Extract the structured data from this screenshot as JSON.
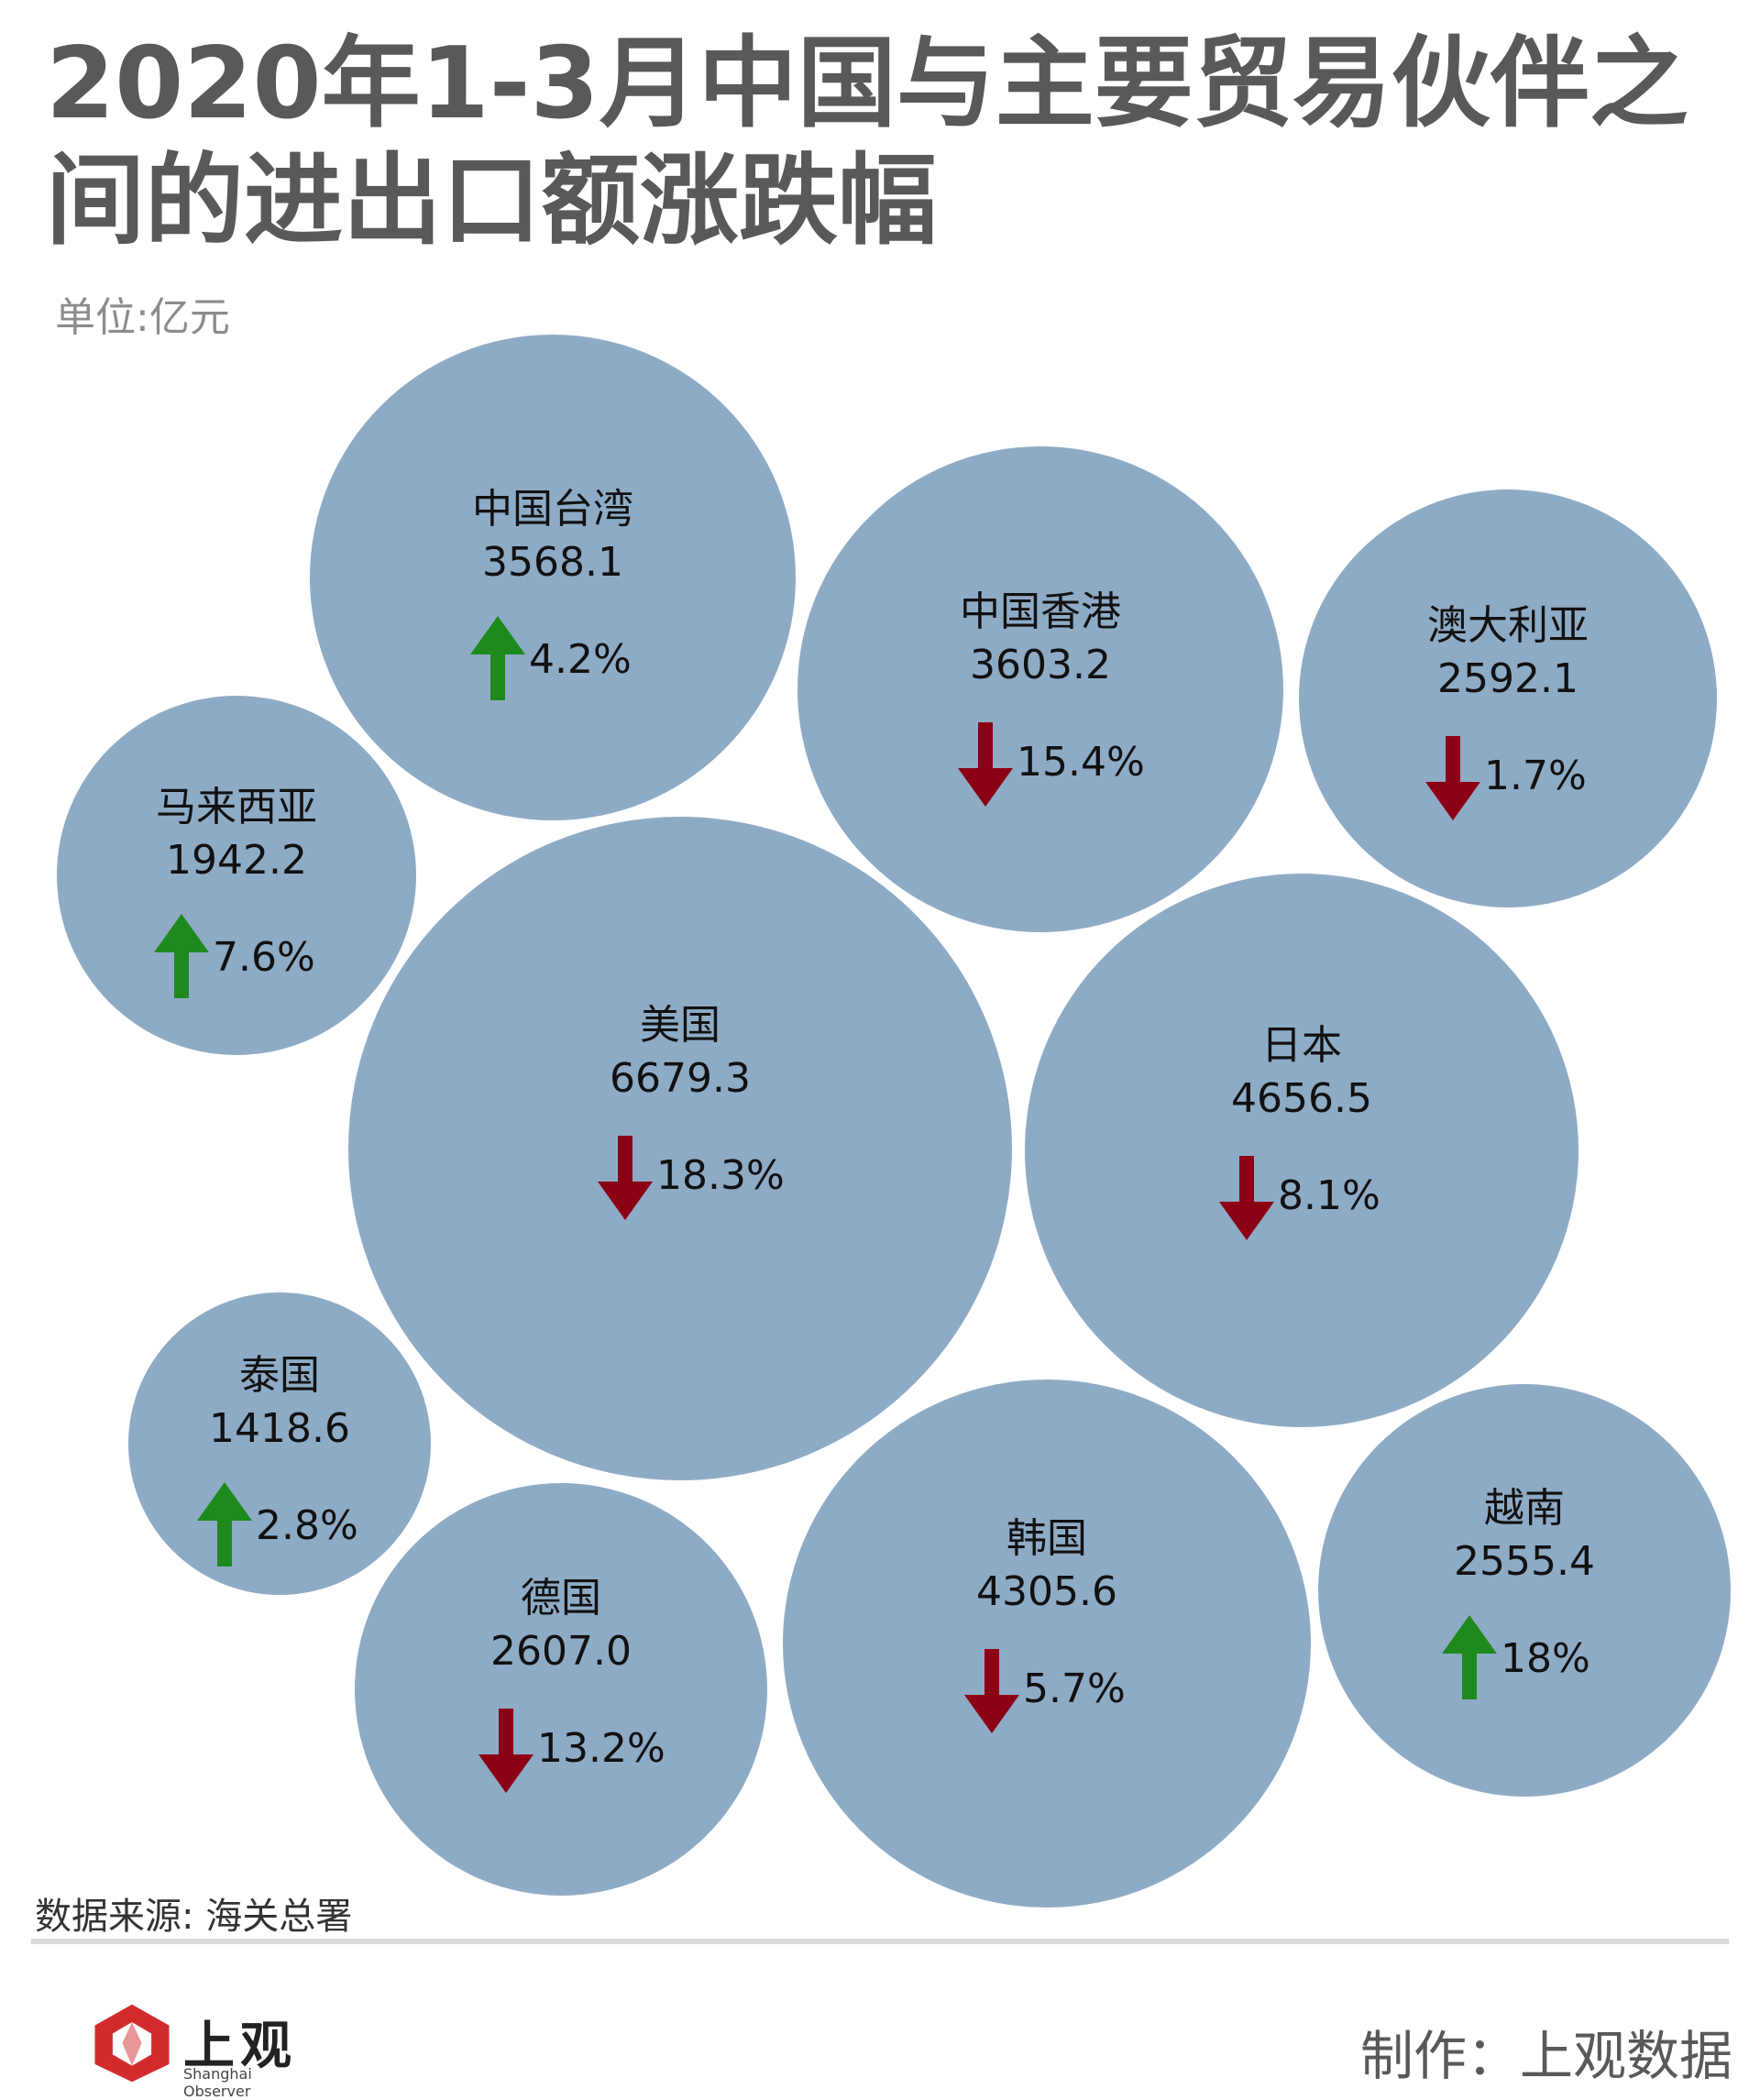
{
  "header": {
    "title": "2020年1-3月中国与主要贸易伙伴之间的进出口额涨跌幅",
    "unit": "单位:亿元"
  },
  "footer": {
    "source": "数据来源: 海关总署",
    "logo_cn": "上观",
    "logo_en": "Shanghai Observer",
    "credit": "制作：上观数据"
  },
  "colors": {
    "bubble": "#8eabc6",
    "up": "#1e8a1e",
    "down": "#8b0015",
    "logo": "#d12b2b"
  },
  "chart_data": {
    "type": "bubble",
    "unit": "亿元",
    "items": [
      {
        "name": "中国台湾",
        "value": 3568.1,
        "change": "4.2%",
        "direction": "up"
      },
      {
        "name": "中国香港",
        "value": 3603.2,
        "change": "15.4%",
        "direction": "down"
      },
      {
        "name": "澳大利亚",
        "value": 2592.1,
        "change": "1.7%",
        "direction": "down"
      },
      {
        "name": "马来西亚",
        "value": 1942.2,
        "change": "7.6%",
        "direction": "up"
      },
      {
        "name": "美国",
        "value": 6679.3,
        "change": "18.3%",
        "direction": "down"
      },
      {
        "name": "日本",
        "value": 4656.5,
        "change": "8.1%",
        "direction": "down"
      },
      {
        "name": "泰国",
        "value": 1418.6,
        "change": "2.8%",
        "direction": "up"
      },
      {
        "name": "德国",
        "value": 2607.0,
        "change": "13.2%",
        "direction": "down"
      },
      {
        "name": "韩国",
        "value": 4305.6,
        "change": "5.7%",
        "direction": "down"
      },
      {
        "name": "越南",
        "value": 2555.4,
        "change": "18%",
        "direction": "up"
      }
    ]
  }
}
